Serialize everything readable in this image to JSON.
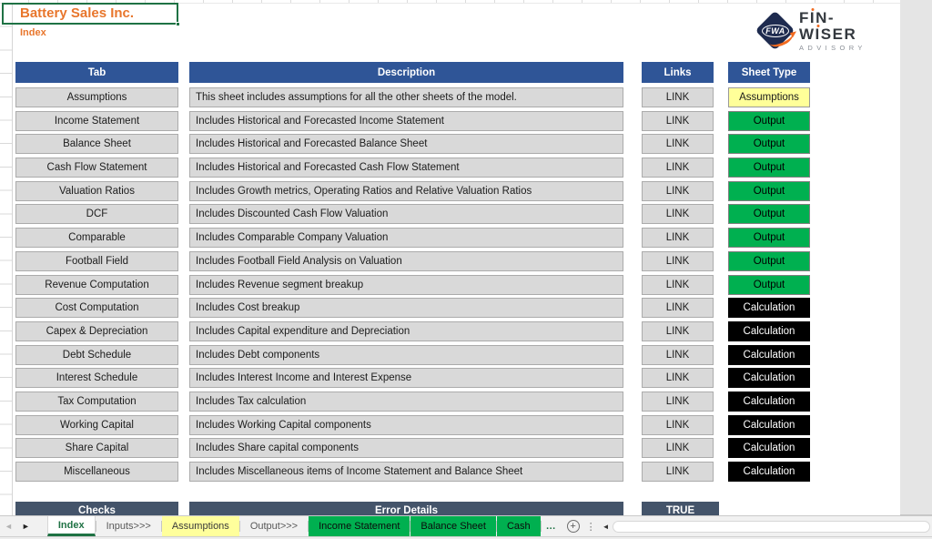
{
  "workbook": {
    "company": "Battery Sales Inc.",
    "sheet_title": "Index"
  },
  "logo": {
    "monogram": "FWA",
    "name": "FIN-WISER",
    "tagline": "ADVISORY"
  },
  "colors": {
    "header_blue": "#2F5597",
    "slate_header": "#44546A",
    "output_green": "#00B050",
    "assumptions_yellow": "#FFFF99",
    "calculation_black": "#000000",
    "brand_orange": "#ED7D31",
    "excel_selection_green": "#1F7244"
  },
  "table": {
    "headers": {
      "tab": "Tab",
      "description": "Description",
      "links": "Links",
      "sheet_type": "Sheet Type"
    },
    "rows": [
      {
        "tab": "Assumptions",
        "description": "This sheet includes assumptions for all the other sheets of the model.",
        "link": "LINK",
        "sheet_type": "Assumptions"
      },
      {
        "tab": "Income Statement",
        "description": "Includes Historical and Forecasted Income Statement",
        "link": "LINK",
        "sheet_type": "Output"
      },
      {
        "tab": "Balance Sheet",
        "description": "Includes Historical and Forecasted Balance Sheet",
        "link": "LINK",
        "sheet_type": "Output"
      },
      {
        "tab": "Cash Flow Statement",
        "description": "Includes Historical and Forecasted Cash Flow Statement",
        "link": "LINK",
        "sheet_type": "Output"
      },
      {
        "tab": "Valuation Ratios",
        "description": "Includes Growth metrics, Operating Ratios and Relative Valuation Ratios",
        "link": "LINK",
        "sheet_type": "Output"
      },
      {
        "tab": "DCF",
        "description": "Includes Discounted Cash Flow Valuation",
        "link": "LINK",
        "sheet_type": "Output"
      },
      {
        "tab": "Comparable",
        "description": "Includes Comparable Company Valuation",
        "link": "LINK",
        "sheet_type": "Output"
      },
      {
        "tab": "Football Field",
        "description": "Includes Football Field Analysis on Valuation",
        "link": "LINK",
        "sheet_type": "Output"
      },
      {
        "tab": "Revenue Computation",
        "description": "Includes Revenue segment breakup",
        "link": "LINK",
        "sheet_type": "Output"
      },
      {
        "tab": "Cost Computation",
        "description": "Includes Cost breakup",
        "link": "LINK",
        "sheet_type": "Calculation"
      },
      {
        "tab": "Capex & Depreciation",
        "description": "Includes Capital expenditure and Depreciation",
        "link": "LINK",
        "sheet_type": "Calculation"
      },
      {
        "tab": "Debt Schedule",
        "description": "Includes Debt components",
        "link": "LINK",
        "sheet_type": "Calculation"
      },
      {
        "tab": "Interest Schedule",
        "description": "Includes Interest Income and Interest Expense",
        "link": "LINK",
        "sheet_type": "Calculation"
      },
      {
        "tab": "Tax Computation",
        "description": "Includes Tax calculation",
        "link": "LINK",
        "sheet_type": "Calculation"
      },
      {
        "tab": "Working Capital",
        "description": "Includes Working Capital components",
        "link": "LINK",
        "sheet_type": "Calculation"
      },
      {
        "tab": "Share Capital",
        "description": "Includes Share capital components",
        "link": "LINK",
        "sheet_type": "Calculation"
      },
      {
        "tab": "Miscellaneous",
        "description": "Includes Miscellaneous items of Income Statement and Balance Sheet",
        "link": "LINK",
        "sheet_type": "Calculation"
      }
    ]
  },
  "checks_section": {
    "checks_label": "Checks",
    "error_details_label": "Error Details",
    "status_value": "TRUE"
  },
  "sheet_tabs": [
    {
      "label": "Index",
      "color": "default",
      "active": true
    },
    {
      "label": "Inputs>>>",
      "color": "default",
      "active": false
    },
    {
      "label": "Assumptions",
      "color": "yellow",
      "active": false
    },
    {
      "label": "Output>>>",
      "color": "default",
      "active": false
    },
    {
      "label": "Income Statement",
      "color": "green",
      "active": false
    },
    {
      "label": "Balance Sheet",
      "color": "green",
      "active": false
    },
    {
      "label": "Cash",
      "color": "green",
      "active": false
    },
    {
      "label": "…",
      "color": "ellipsis",
      "active": false
    }
  ],
  "tab_bar": {
    "nav_left": "◄",
    "nav_right": "►",
    "add_sheet": "+",
    "kebab": "⋮",
    "scroll_left": "◄"
  }
}
